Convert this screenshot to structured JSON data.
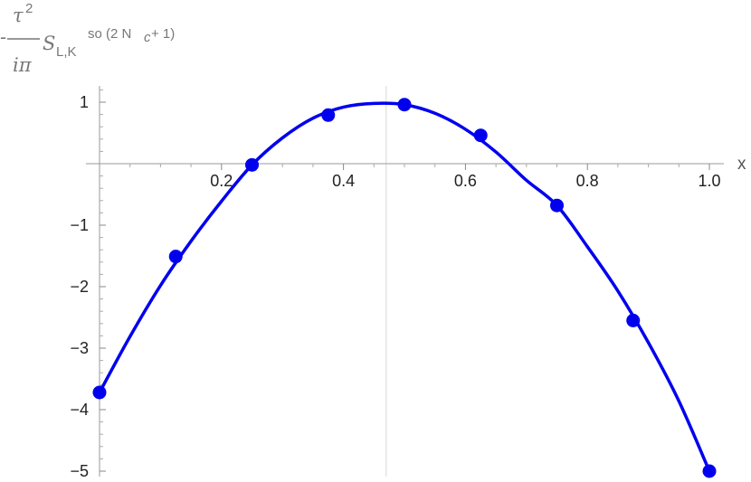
{
  "chart_data": {
    "type": "scatter",
    "title": "",
    "xlabel": "x",
    "ylabel": {
      "minus": "-",
      "numerator": "τ",
      "numerator_sup": "2",
      "denominator": "iπ",
      "symbol": "S",
      "subscript": "L,K",
      "superscript": "so (2 N",
      "superscript_sub": "c",
      "superscript_tail": " + 1)"
    },
    "xlim": [
      0.0,
      1.0
    ],
    "ylim": [
      -5.2,
      1.3
    ],
    "x_ticks": [
      0.2,
      0.4,
      0.6,
      0.8,
      1.0
    ],
    "x_tick_labels": [
      "0.2",
      "0.4",
      "0.6",
      "0.8",
      "1.0"
    ],
    "y_ticks": [
      1,
      -1,
      -2,
      -3,
      -4,
      -5
    ],
    "y_tick_labels": [
      "1",
      "−1",
      "−2",
      "−3",
      "−4",
      "−5"
    ],
    "reference_line_x": 0.47,
    "grid": false,
    "series": [
      {
        "kind": "points",
        "color": "#0000ee",
        "x": [
          0.0,
          0.125,
          0.25,
          0.375,
          0.5,
          0.625,
          0.75,
          0.875,
          1.0
        ],
        "y": [
          -3.72,
          -1.51,
          -0.02,
          0.79,
          0.96,
          0.46,
          -0.68,
          -2.55,
          -5.0
        ]
      },
      {
        "kind": "curve",
        "color": "#0000ee",
        "x": [
          0.0,
          0.05,
          0.1,
          0.15,
          0.2,
          0.25,
          0.3,
          0.35,
          0.4,
          0.45,
          0.5,
          0.55,
          0.6,
          0.65,
          0.7,
          0.75,
          0.8,
          0.85,
          0.9,
          0.95,
          1.0
        ],
        "y": [
          -3.72,
          -2.81,
          -1.98,
          -1.26,
          -0.61,
          -0.02,
          0.42,
          0.74,
          0.92,
          0.98,
          0.96,
          0.82,
          0.56,
          0.19,
          -0.27,
          -0.68,
          -1.35,
          -2.07,
          -2.91,
          -3.86,
          -5.0
        ]
      }
    ]
  }
}
